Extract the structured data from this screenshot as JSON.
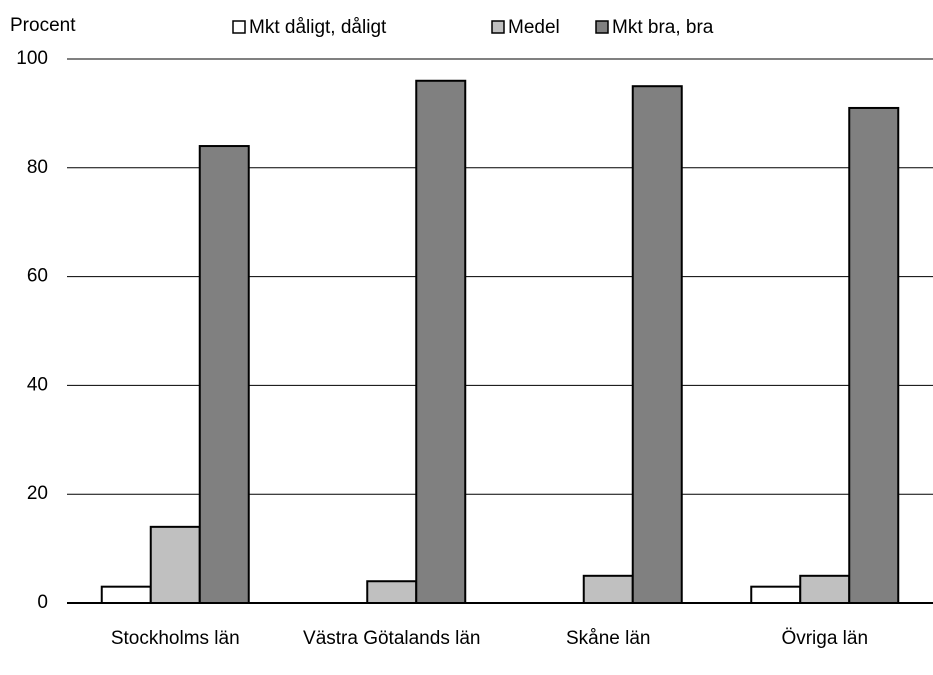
{
  "chart_data": {
    "type": "bar",
    "y_label": "Procent",
    "categories": [
      "Stockholms län",
      "Västra Götalands län",
      "Skåne län",
      "Övriga län"
    ],
    "series": [
      {
        "name": "Mkt dåligt, dåligt",
        "color": "#ffffff",
        "values": [
          3,
          0,
          0,
          3
        ]
      },
      {
        "name": "Medel",
        "color": "#c0c0c0",
        "values": [
          14,
          4,
          5,
          5
        ]
      },
      {
        "name": "Mkt bra, bra",
        "color": "#808080",
        "values": [
          84,
          96,
          95,
          91
        ]
      }
    ],
    "ylim": [
      0,
      100
    ],
    "yticks": [
      0,
      20,
      40,
      60,
      80,
      100
    ],
    "grid": true,
    "legend": "top"
  }
}
